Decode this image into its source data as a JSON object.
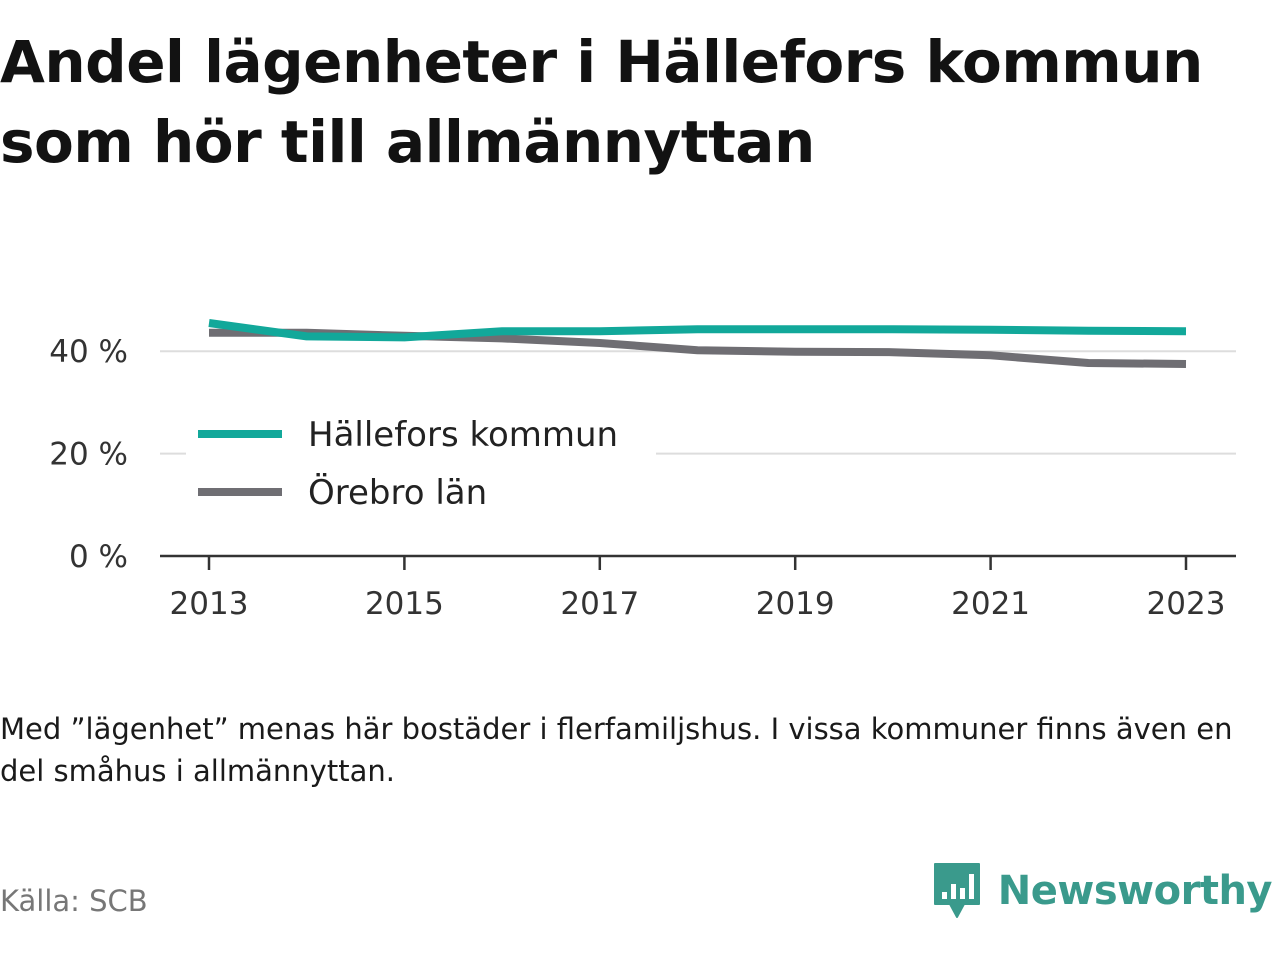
{
  "title_line1": "Andel lägenheter i Hällefors kommun",
  "title_line2": "som hör till allmännyttan",
  "note": "Med ”lägenhet” menas här bostäder i flerfamiljshus. I vissa kommuner finns även en del småhus i allmännyttan.",
  "source": "Källa: SCB",
  "logo": {
    "text": "Newsworthy",
    "icon": "newsworthy-logo-icon",
    "color": "#3a9a8c"
  },
  "chart_data": {
    "type": "line",
    "title": "Andel lägenheter i Hällefors kommun som hör till allmännyttan",
    "x": [
      2013,
      2014,
      2015,
      2016,
      2017,
      2018,
      2019,
      2020,
      2021,
      2022,
      2023
    ],
    "series": [
      {
        "name": "Hällefors kommun",
        "color": "#12a89a",
        "values": [
          45.5,
          42.9,
          42.7,
          43.9,
          43.9,
          44.3,
          44.3,
          44.3,
          44.2,
          44.0,
          43.9
        ]
      },
      {
        "name": "Örebro län",
        "color": "#6f6e73",
        "values": [
          43.6,
          43.6,
          43.0,
          42.5,
          41.6,
          40.2,
          39.9,
          39.8,
          39.2,
          37.7,
          37.5
        ]
      }
    ],
    "ylim": [
      0,
      50
    ],
    "yticks": [
      0,
      20,
      40
    ],
    "ytick_labels": [
      "0 %",
      "20 %",
      "40 %"
    ],
    "xticks": [
      2013,
      2015,
      2017,
      2019,
      2021,
      2023
    ],
    "xtick_labels": [
      "2013",
      "2015",
      "2017",
      "2019",
      "2021",
      "2023"
    ],
    "grid": "horizontal",
    "legend_position": "lower-left, inside plot"
  }
}
